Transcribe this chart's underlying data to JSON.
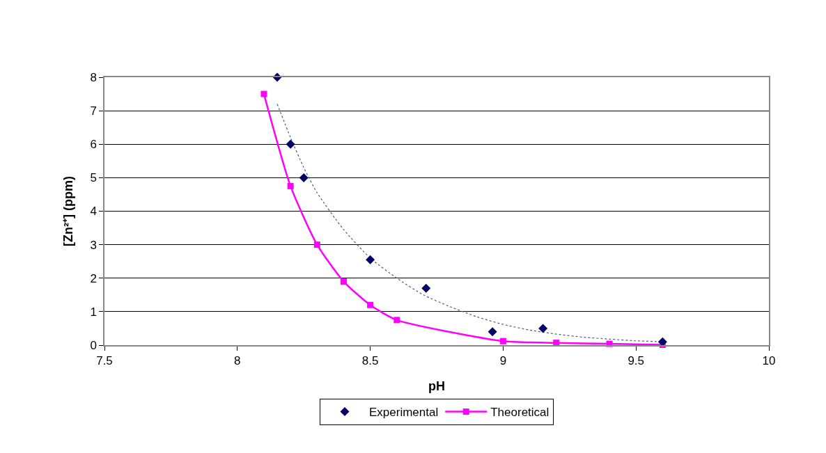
{
  "chart_data": {
    "type": "scatter",
    "xlabel": "pH",
    "ylabel": "[Zn²⁺] (ppm)",
    "xlim": [
      7.5,
      10
    ],
    "xticks": [
      7.5,
      8,
      8.5,
      9,
      9.5,
      10
    ],
    "ylim": [
      0,
      8
    ],
    "yticks": [
      0,
      1,
      2,
      3,
      4,
      5,
      6,
      7,
      8
    ],
    "grid": "y",
    "legend": "bottom",
    "series": [
      {
        "name": "Experimental",
        "marker": "diamond",
        "color": "#000066",
        "x": [
          8.15,
          8.2,
          8.25,
          8.5,
          8.71,
          8.96,
          9.15,
          9.6
        ],
        "values": [
          8,
          6,
          5,
          2.55,
          1.7,
          0.4,
          0.5,
          0.1
        ]
      },
      {
        "name": "Theoretical",
        "type": "line",
        "marker": "square",
        "line_style": "solid",
        "color": "#ff00ff",
        "x": [
          8.1,
          8.2,
          8.3,
          8.4,
          8.5,
          8.6,
          9.0,
          9.2,
          9.4,
          9.6
        ],
        "values": [
          7.5,
          4.75,
          3,
          1.9,
          1.2,
          0.75,
          0.12,
          0.07,
          0.04,
          0.01
        ]
      },
      {
        "type": "line",
        "marker": "none",
        "line_style": "dotted",
        "color": "#4a5a80",
        "x": [
          8.15,
          8.2,
          8.25,
          8.3,
          8.4,
          8.5,
          8.6,
          8.7,
          8.8,
          8.9,
          9.0,
          9.1,
          9.2,
          9.3,
          9.4,
          9.5,
          9.6
        ],
        "values": [
          7.2,
          6.2,
          5.3,
          4.55,
          3.45,
          2.6,
          2.0,
          1.5,
          1.15,
          0.85,
          0.62,
          0.45,
          0.33,
          0.24,
          0.18,
          0.13,
          0.1
        ]
      }
    ]
  }
}
